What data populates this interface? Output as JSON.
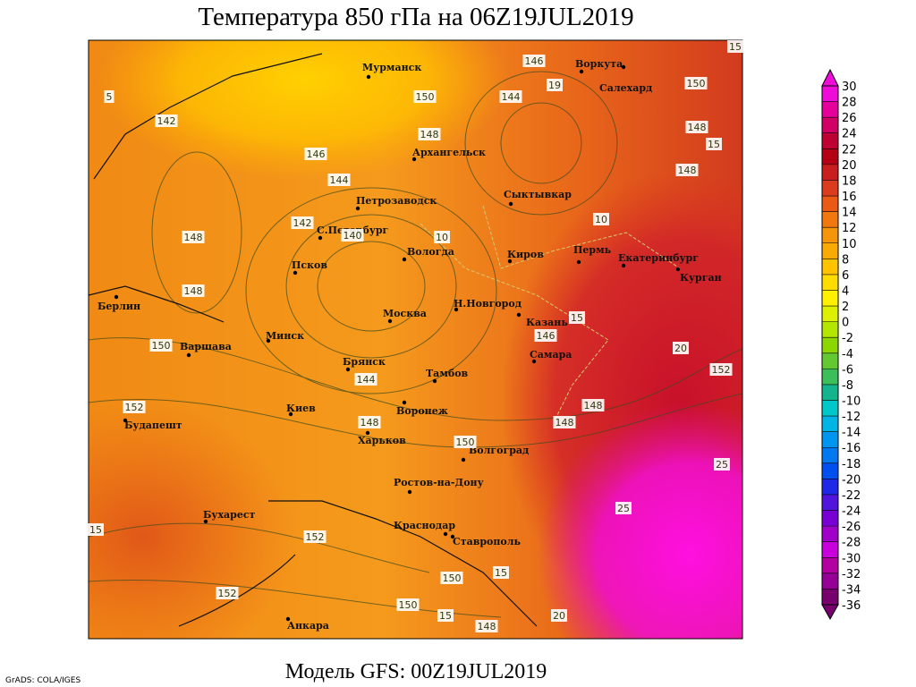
{
  "header": {
    "title": "Температура 850 гПа на 06Z19JUL2019"
  },
  "cities": [
    "Мурманск",
    "Архангельск",
    "Петрозаводск",
    "С.Петербург",
    "Вологда",
    "Псков",
    "Москва",
    "Н.Новгород",
    "Казань",
    "Киров",
    "Сыктывкар",
    "Воркута",
    "Салехард",
    "Пермь",
    "Екатеринбург",
    "Курган",
    "Самара",
    "Берлин",
    "Варшава",
    "Минск",
    "Брянск",
    "Тамбов",
    "Воронеж",
    "Киев",
    "Харьков",
    "Будапешт",
    "Волгоград",
    "Ростов-на-Дону",
    "Бухарест",
    "Краснодар",
    "Ставрополь",
    "Анкара"
  ],
  "contour_labels": [
    146,
    150,
    144,
    19,
    150,
    142,
    148,
    148,
    15,
    146,
    148,
    144,
    142,
    140,
    10,
    148,
    10,
    148,
    15,
    146,
    150,
    20,
    152,
    144,
    148,
    152,
    148,
    148,
    150,
    25,
    25,
    152,
    15,
    15,
    150,
    152,
    150,
    15,
    148,
    20,
    5,
    15
  ],
  "colorbar": {
    "levels": [
      30,
      28,
      26,
      24,
      22,
      20,
      18,
      16,
      14,
      12,
      10,
      8,
      6,
      4,
      2,
      0,
      -2,
      -4,
      -6,
      -8,
      -10,
      -12,
      -14,
      -16,
      -18,
      -20,
      -22,
      -24,
      -26,
      -28,
      -30,
      -32,
      -34,
      -36
    ],
    "colors": [
      "#f00cd8",
      "#e6009b",
      "#d20064",
      "#be0032",
      "#b40014",
      "#c81e1e",
      "#dc3c1e",
      "#eb5a14",
      "#f0780f",
      "#f5960a",
      "#faaa05",
      "#ffc300",
      "#ffdc00",
      "#fff000",
      "#dcf000",
      "#b4e600",
      "#8cd700",
      "#64c832",
      "#3cbe5a",
      "#14b48c",
      "#00c8c8",
      "#00b4e6",
      "#0096f0",
      "#0078f0",
      "#0050f0",
      "#1e28e6",
      "#5014dc",
      "#7800d2",
      "#a000c8",
      "#c800dc",
      "#b400a0",
      "#960096",
      "#78006e"
    ]
  },
  "footer": {
    "model": "Модель GFS: 00Z19JUL2019",
    "credit": "GrADS: COLA/IGES"
  }
}
